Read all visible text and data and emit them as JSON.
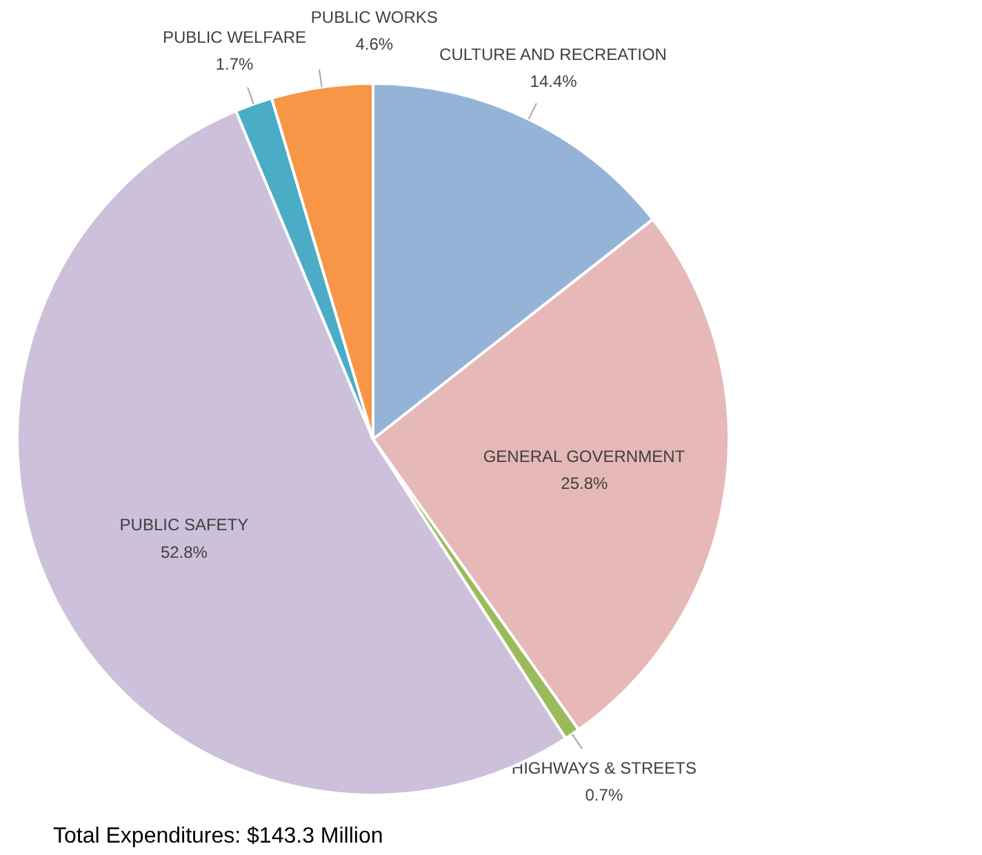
{
  "chart_data": {
    "type": "pie",
    "categories": [
      "CULTURE AND RECREATION",
      "GENERAL GOVERNMENT",
      "HIGHWAYS & STREETS",
      "PUBLIC SAFETY",
      "PUBLIC WELFARE",
      "PUBLIC WORKS"
    ],
    "values": [
      14.4,
      25.8,
      0.7,
      52.8,
      1.7,
      4.6
    ],
    "value_labels": [
      "14.4%",
      "25.8%",
      "0.7%",
      "52.8%",
      "1.7%",
      "4.6%"
    ],
    "colors": [
      "#95b3d7",
      "#e6b8b7",
      "#9bbb59",
      "#ccc0da",
      "#4bacc6",
      "#f79646"
    ],
    "annotations": [
      "Total Expenditures: $143.3 Million"
    ]
  }
}
